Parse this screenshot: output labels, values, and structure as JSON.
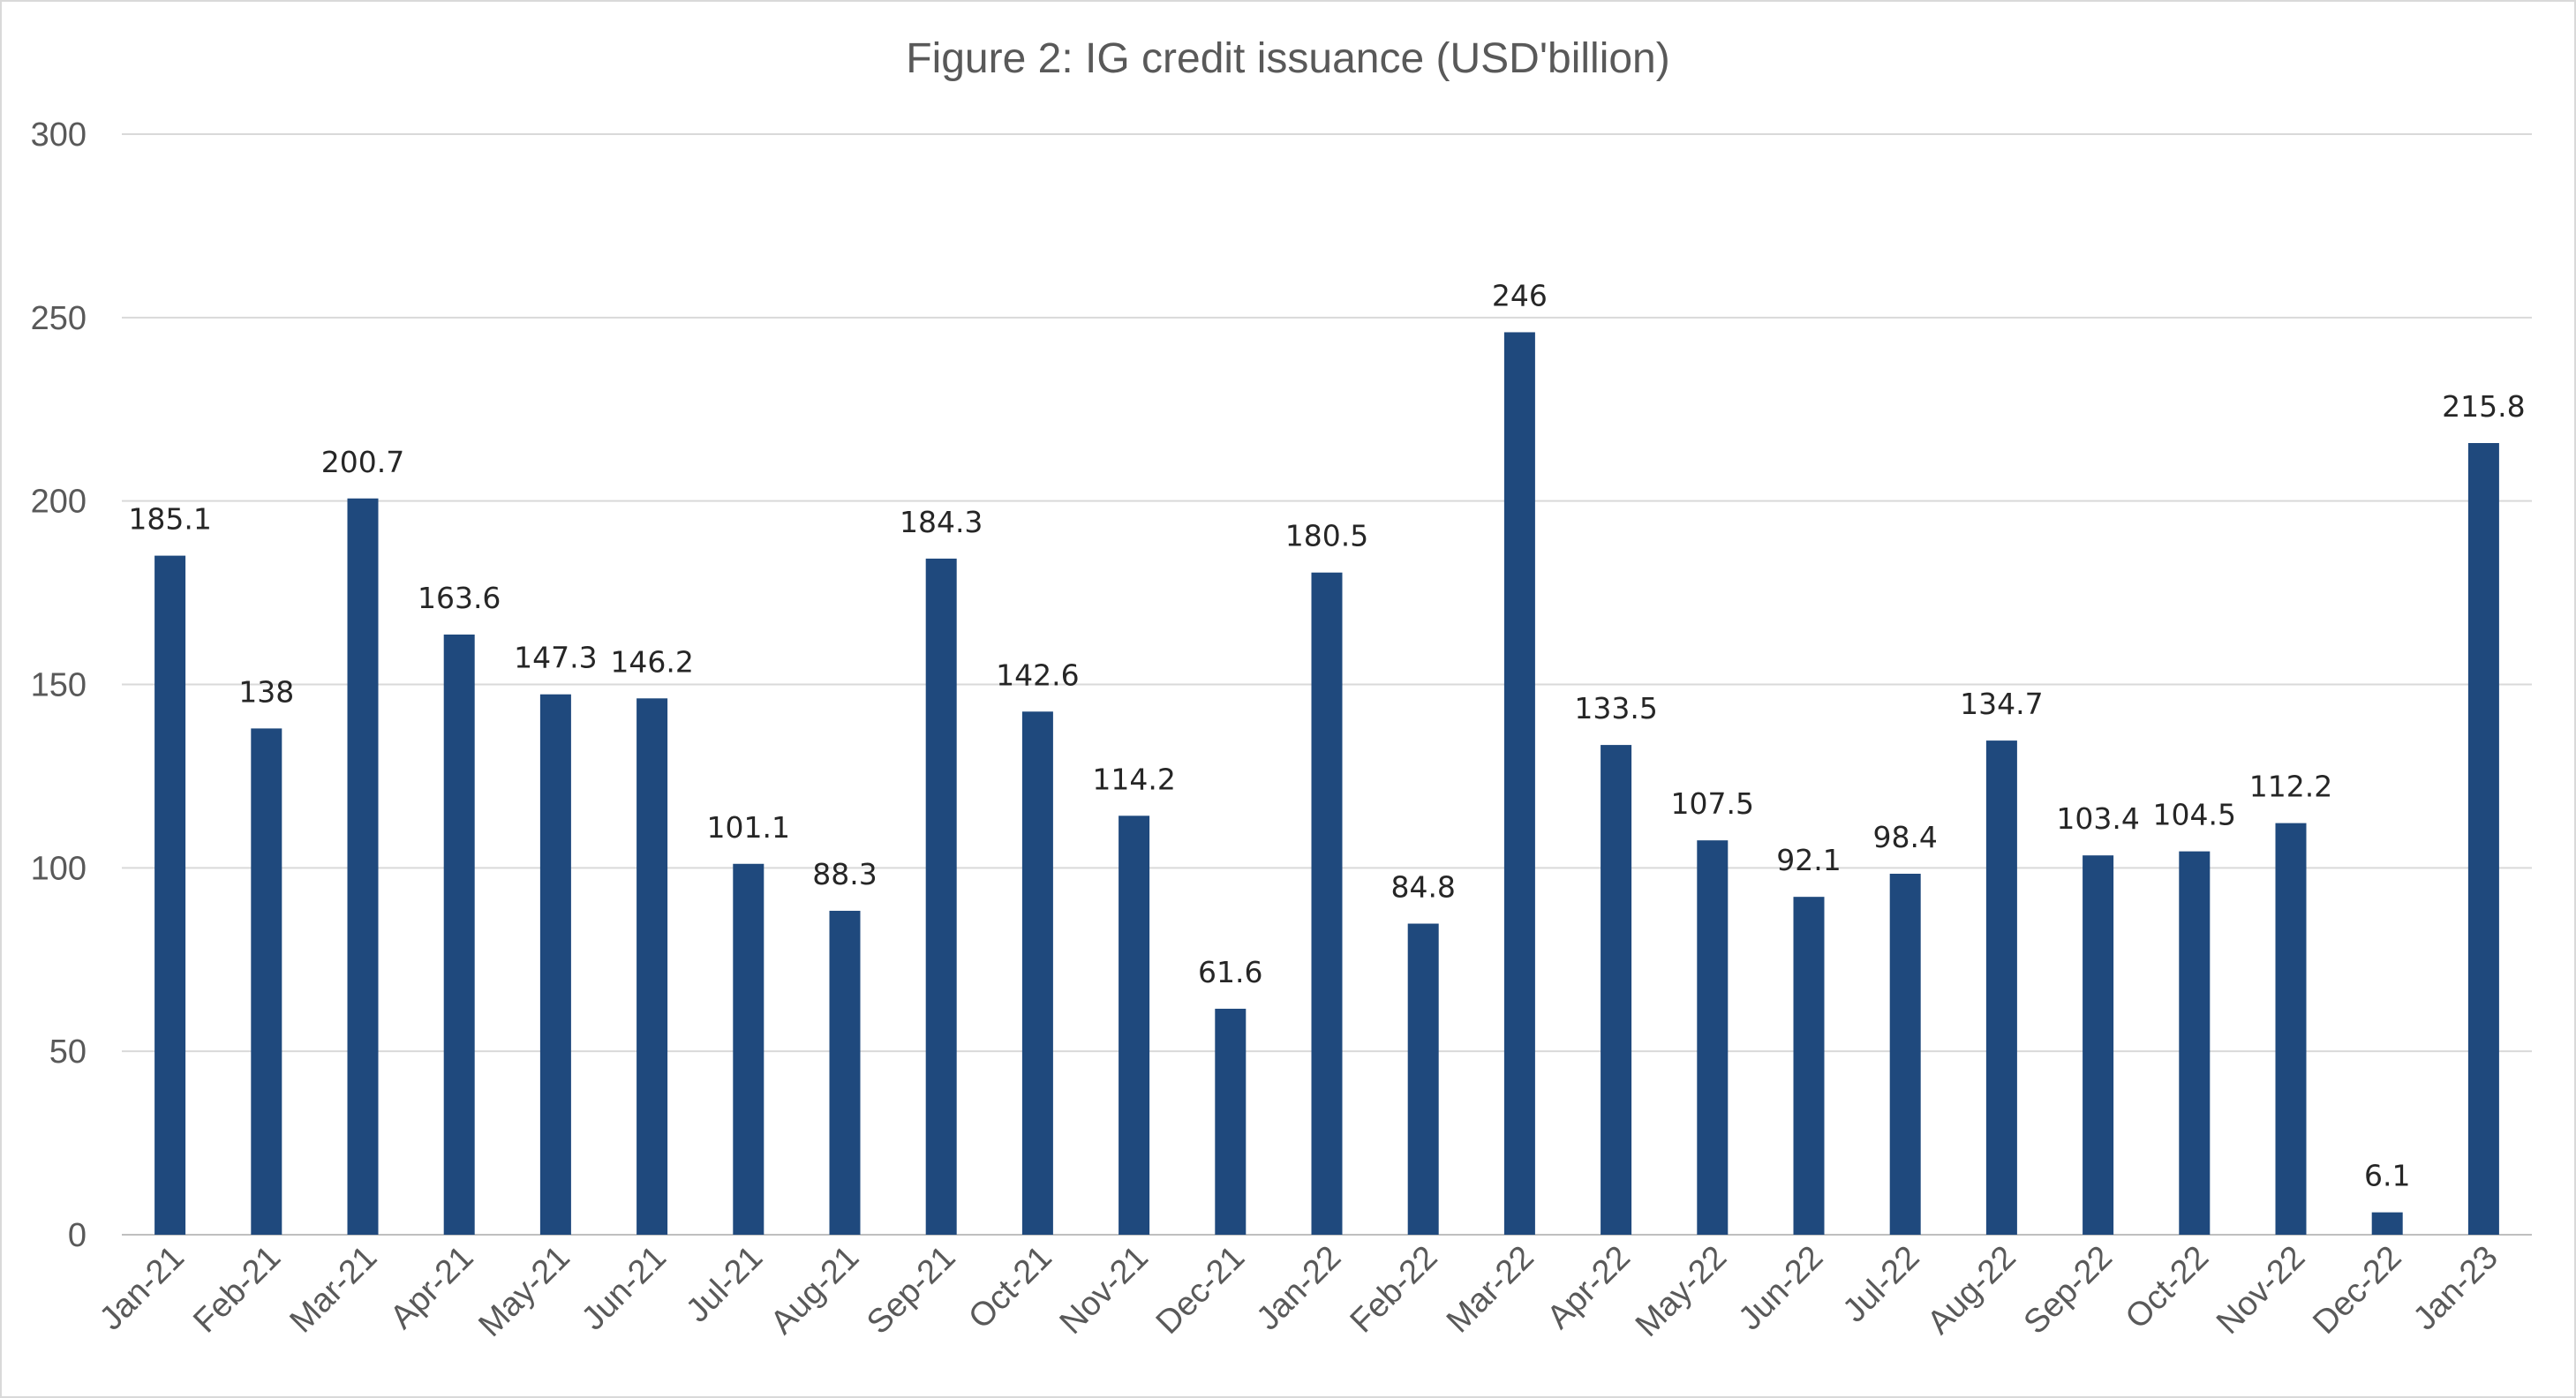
{
  "chart_data": {
    "type": "bar",
    "title": "Figure 2: IG credit issuance (USD'billion)",
    "xlabel": "",
    "ylabel": "",
    "ylim": [
      0,
      300
    ],
    "yticks": [
      "0",
      "50",
      "100",
      "150",
      "200",
      "250",
      "300"
    ],
    "grid": true,
    "legend": "none",
    "bar_color": "#1f497d",
    "categories": [
      "Jan-21",
      "Feb-21",
      "Mar-21",
      "Apr-21",
      "May-21",
      "Jun-21",
      "Jul-21",
      "Aug-21",
      "Sep-21",
      "Oct-21",
      "Nov-21",
      "Dec-21",
      "Jan-22",
      "Feb-22",
      "Mar-22",
      "Apr-22",
      "May-22",
      "Jun-22",
      "Jul-22",
      "Aug-22",
      "Sep-22",
      "Oct-22",
      "Nov-22",
      "Dec-22",
      "Jan-23"
    ],
    "values": [
      185.1,
      138,
      200.7,
      163.6,
      147.3,
      146.2,
      101.1,
      88.3,
      184.3,
      142.6,
      114.2,
      61.6,
      180.5,
      84.8,
      246,
      133.5,
      107.5,
      92.1,
      98.4,
      134.7,
      103.4,
      104.5,
      112.2,
      6.1,
      215.8
    ],
    "data_labels": [
      "185.1",
      "138",
      "200.7",
      "163.6",
      "147.3",
      "146.2",
      "101.1",
      "88.3",
      "184.3",
      "142.6",
      "114.2",
      "61.6",
      "180.5",
      "84.8",
      "246",
      "133.5",
      "107.5",
      "92.1",
      "98.4",
      "134.7",
      "103.4",
      "104.5",
      "112.2",
      "6.1",
      "215.8"
    ]
  }
}
